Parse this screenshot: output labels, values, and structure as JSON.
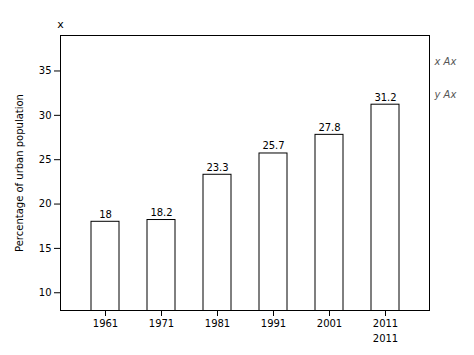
{
  "chart_data": {
    "type": "bar",
    "categories": [
      "1961",
      "1971",
      "1981",
      "1991",
      "2001",
      "2011"
    ],
    "values": [
      18,
      18.2,
      23.3,
      25.7,
      27.8,
      31.2
    ],
    "color": "#ffffff",
    "ylabel": "Percentage of urban population",
    "ylim": [
      8,
      39
    ],
    "yticks": [
      10,
      15,
      20,
      25,
      30,
      35
    ],
    "grid": false,
    "data_labels": true,
    "annotations": [
      "x",
      "x Ax",
      "y Ax",
      "2011"
    ]
  }
}
